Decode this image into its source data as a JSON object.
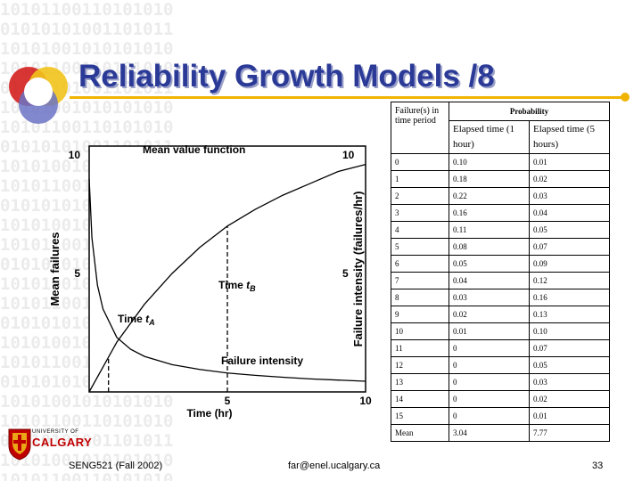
{
  "background_binary": [
    "10101100110101010",
    "01010101001101011",
    "10101001010101010",
    "10101100110101010",
    "01010101001101011",
    "10101001010101010",
    "10101100110101010",
    "01010101001101011",
    "10101001010101010",
    "10101100110101010",
    "01010101001101011",
    "10101001010101010",
    "10101100110101010",
    "01010101001101011",
    "10101001010101010",
    "10101100110101010",
    "01010101001101011",
    "10101001010101010",
    "10101100110101010",
    "01010101001101011",
    "10101001010101010",
    "10101100110101010",
    "01010101001101011",
    "10101001010101010",
    "10101100110101010"
  ],
  "slide": {
    "title": "Reliability Growth Models /8",
    "title_color": "#2b3a97",
    "rule_color": "#f0b400"
  },
  "chart_data": {
    "type": "line",
    "series": [
      {
        "name": "Mean value function",
        "axis": "left",
        "x": [
          0,
          1,
          2,
          3,
          4,
          5,
          6,
          7,
          8,
          9,
          10
        ],
        "y": [
          0,
          2.1,
          3.7,
          5.0,
          6.1,
          7.0,
          7.7,
          8.3,
          8.8,
          9.3,
          9.6
        ]
      },
      {
        "name": "Failure intensity",
        "axis": "right",
        "x": [
          0,
          0.1,
          0.3,
          0.5,
          1,
          1.5,
          2,
          3,
          4,
          5,
          6,
          7,
          8,
          9,
          10
        ],
        "y": [
          9.0,
          6.5,
          4.5,
          3.5,
          2.3,
          1.8,
          1.5,
          1.15,
          0.95,
          0.8,
          0.7,
          0.62,
          0.55,
          0.5,
          0.45
        ]
      }
    ],
    "annotations": [
      {
        "label_prefix": "Time ",
        "label_var": "t",
        "label_sub": "A",
        "x": 0.7
      },
      {
        "label_prefix": "Time ",
        "label_var": "t",
        "label_sub": "B",
        "x": 5.0
      }
    ],
    "xlabel": "Time (hr)",
    "ylabel_left": "Mean failures",
    "ylabel_right": "Failure intensity (failures/hr)",
    "x_ticks": [
      "5",
      "10"
    ],
    "y_left_ticks": [
      "5",
      "10"
    ],
    "y_right_ticks": [
      "5",
      "10"
    ],
    "xlim": [
      0,
      10
    ],
    "ylim": [
      0,
      10
    ],
    "grid": false,
    "legend": "none"
  },
  "table": {
    "header_period": "Failure(s) in time period",
    "header_probability": "Probability",
    "header_col1": "Elapsed time (1 hour)",
    "header_col2": "Elapsed time (5 hours)",
    "rows": [
      [
        "0",
        "0.10",
        "0.01"
      ],
      [
        "1",
        "0.18",
        "0.02"
      ],
      [
        "2",
        "0.22",
        "0.03"
      ],
      [
        "3",
        "0.16",
        "0.04"
      ],
      [
        "4",
        "0.11",
        "0.05"
      ],
      [
        "5",
        "0.08",
        "0.07"
      ],
      [
        "6",
        "0.05",
        "0.09"
      ],
      [
        "7",
        "0.04",
        "0.12"
      ],
      [
        "8",
        "0.03",
        "0.16"
      ],
      [
        "9",
        "0.02",
        "0.13"
      ],
      [
        "10",
        "0.01",
        "0.10"
      ],
      [
        "11",
        "0",
        "0.07"
      ],
      [
        "12",
        "0",
        "0.05"
      ],
      [
        "13",
        "0",
        "0.03"
      ],
      [
        "14",
        "0",
        "0.02"
      ],
      [
        "15",
        "0",
        "0.01"
      ],
      [
        "Mean",
        "3.04",
        "7.77"
      ]
    ]
  },
  "footer": {
    "course": "SENG521 (Fall 2002)",
    "email": "far@enel.ucalgary.ca",
    "page": "33"
  },
  "university": {
    "line1": "UNIVERSITY OF",
    "line2": "CALGARY",
    "brand_color": "#c00000"
  }
}
